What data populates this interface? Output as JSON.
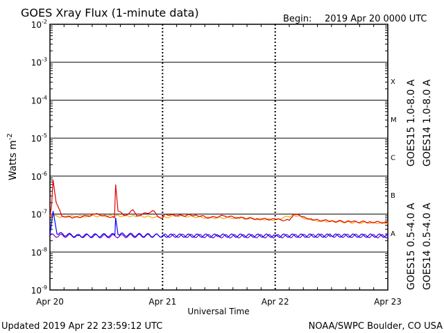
{
  "header": {
    "title": "GOES Xray Flux (1-minute data)",
    "begin_label": "Begin:",
    "begin_value": "2019 Apr 20 0000 UTC"
  },
  "footer": {
    "updated": "Updated 2019 Apr 22 23:59:12 UTC",
    "source": "NOAA/SWPC Boulder, CO USA"
  },
  "colors": {
    "goes15_long": "#e00000",
    "goes14_long": "#ffa500",
    "goes15_short": "#0000ff",
    "goes14_short": "#8000c0",
    "frame": "#000000"
  },
  "chart_data": {
    "type": "line",
    "title": "GOES Xray Flux (1-minute data)",
    "xlabel": "Universal Time",
    "ylabel": "Watts m",
    "ylabel_sup": "-2",
    "yscale": "log",
    "ylim": [
      1e-09,
      0.01
    ],
    "xlim": [
      "2019-04-20 00:00",
      "2019-04-23 00:00"
    ],
    "grid": "horizontal at decades",
    "x_ticks": [
      "Apr 20",
      "Apr 21",
      "Apr 22",
      "Apr 23"
    ],
    "y_ticks": [
      {
        "base": "10",
        "exp": "-9"
      },
      {
        "base": "10",
        "exp": "-8"
      },
      {
        "base": "10",
        "exp": "-7"
      },
      {
        "base": "10",
        "exp": "-6"
      },
      {
        "base": "10",
        "exp": "-5"
      },
      {
        "base": "10",
        "exp": "-4"
      },
      {
        "base": "10",
        "exp": "-3"
      },
      {
        "base": "10",
        "exp": "-2"
      }
    ],
    "flare_classes": [
      "X",
      "M",
      "C",
      "B",
      "A"
    ],
    "legend": [
      "GOES15 1.0-8.0 A",
      "GOES14 1.0-8.0 A",
      "GOES15 0.5-4.0 A",
      "GOES14 0.5-4.0 A"
    ],
    "series": [
      {
        "name": "GOES15 1.0-8.0 A",
        "points": [
          [
            "2019-04-20 00:00",
            9e-08
          ],
          [
            "2019-04-20 00:20",
            1.6e-07
          ],
          [
            "2019-04-20 00:40",
            8e-07
          ],
          [
            "2019-04-20 01:20",
            2e-07
          ],
          [
            "2019-04-20 02:30",
            9e-08
          ],
          [
            "2019-04-20 05:00",
            8e-08
          ],
          [
            "2019-04-20 08:00",
            9e-08
          ],
          [
            "2019-04-20 09:30",
            1e-07
          ],
          [
            "2019-04-20 12:00",
            9e-08
          ],
          [
            "2019-04-20 13:45",
            8e-08
          ],
          [
            "2019-04-20 14:00",
            6e-07
          ],
          [
            "2019-04-20 14:30",
            1.2e-07
          ],
          [
            "2019-04-20 16:00",
            9e-08
          ],
          [
            "2019-04-20 17:40",
            1.3e-07
          ],
          [
            "2019-04-20 18:30",
            9e-08
          ],
          [
            "2019-04-20 22:10",
            1.2e-07
          ],
          [
            "2019-04-20 23:00",
            8.5e-08
          ],
          [
            "2019-04-21 00:00",
            8e-08
          ],
          [
            "2019-04-21 00:30",
            1e-07
          ],
          [
            "2019-04-21 03:00",
            9e-08
          ],
          [
            "2019-04-21 07:00",
            9.5e-08
          ],
          [
            "2019-04-21 10:00",
            8e-08
          ],
          [
            "2019-04-21 13:00",
            9e-08
          ],
          [
            "2019-04-21 16:00",
            8e-08
          ],
          [
            "2019-04-21 20:00",
            7.5e-08
          ],
          [
            "2019-04-22 00:00",
            7.2e-08
          ],
          [
            "2019-04-22 03:00",
            6.8e-08
          ],
          [
            "2019-04-22 04:00",
            1e-07
          ],
          [
            "2019-04-22 06:00",
            8.5e-08
          ],
          [
            "2019-04-22 08:00",
            7e-08
          ],
          [
            "2019-04-22 12:00",
            6.6e-08
          ],
          [
            "2019-04-22 16:00",
            6.3e-08
          ],
          [
            "2019-04-22 20:00",
            6.2e-08
          ],
          [
            "2019-04-23 00:00",
            6e-08
          ]
        ]
      },
      {
        "name": "GOES14 1.0-8.0 A",
        "points": [
          [
            "2019-04-20 00:00",
            9e-08
          ],
          [
            "2019-04-20 02:30",
            8.5e-08
          ],
          [
            "2019-04-20 08:00",
            8.8e-08
          ],
          [
            "2019-04-20 14:00",
            9e-08
          ],
          [
            "2019-04-20 18:00",
            9e-08
          ],
          [
            "2019-04-21 00:00",
            8e-08
          ],
          [
            "2019-04-21 03:00",
            9e-08
          ],
          [
            "2019-04-21 10:00",
            8e-08
          ],
          [
            "2019-04-21 16:00",
            8e-08
          ],
          [
            "2019-04-22 00:00",
            7e-08
          ],
          [
            "2019-04-22 04:00",
            9.5e-08
          ],
          [
            "2019-04-22 08:00",
            6.8e-08
          ],
          [
            "2019-04-22 16:00",
            6e-08
          ],
          [
            "2019-04-23 00:00",
            5.8e-08
          ]
        ]
      },
      {
        "name": "GOES15 0.5-4.0 A",
        "points": [
          [
            "2019-04-20 00:00",
            2.8e-08
          ],
          [
            "2019-04-20 00:40",
            1.2e-07
          ],
          [
            "2019-04-20 01:30",
            3e-08
          ],
          [
            "2019-04-20 06:00",
            2.7e-08
          ],
          [
            "2019-04-20 13:50",
            2.8e-08
          ],
          [
            "2019-04-20 14:00",
            8e-08
          ],
          [
            "2019-04-20 14:30",
            2.9e-08
          ],
          [
            "2019-04-21 00:00",
            2.7e-08
          ],
          [
            "2019-04-21 12:00",
            2.7e-08
          ],
          [
            "2019-04-22 00:00",
            2.7e-08
          ],
          [
            "2019-04-22 12:00",
            2.7e-08
          ],
          [
            "2019-04-23 00:00",
            2.7e-08
          ]
        ]
      },
      {
        "name": "GOES14 0.5-4.0 A",
        "points": [
          [
            "2019-04-20 00:00",
            2.7e-08
          ],
          [
            "2019-04-20 12:00",
            2.6e-08
          ],
          [
            "2019-04-21 00:00",
            2.7e-08
          ],
          [
            "2019-04-21 12:00",
            2.6e-08
          ],
          [
            "2019-04-22 00:00",
            2.6e-08
          ],
          [
            "2019-04-22 12:00",
            2.7e-08
          ],
          [
            "2019-04-23 00:00",
            2.6e-08
          ]
        ]
      }
    ]
  }
}
